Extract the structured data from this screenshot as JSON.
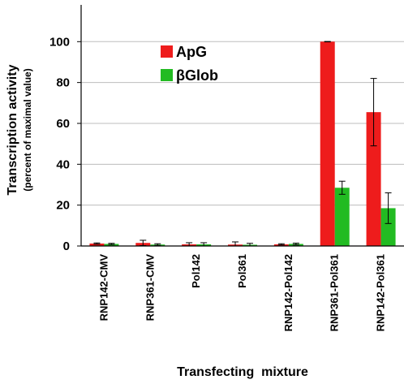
{
  "chart_data": {
    "type": "bar",
    "title": "",
    "ylabel": "Transcription activity",
    "ylabel_sub": "(percent of maximal value)",
    "xlabel": "Transfecting  mixture",
    "ylim": [
      0,
      118
    ],
    "yticks": [
      0,
      20,
      40,
      60,
      80,
      100
    ],
    "grid": true,
    "legend_position": "top-center",
    "categories": [
      "RNP142-CMV",
      "RNP361-CMV",
      "Pol142",
      "Pol361",
      "RNP142-Pol142",
      "RNP361-Pol361",
      "RNP142-Pol361"
    ],
    "series": [
      {
        "name": "ApG",
        "color": "#ee1c1c",
        "values": [
          1.2,
          1.5,
          0.8,
          0.7,
          0.8,
          100,
          65.5
        ],
        "errors": [
          0.3,
          1.3,
          0.8,
          1.3,
          0.3,
          0.1,
          16.5
        ]
      },
      {
        "name": "βGlob",
        "color": "#22bb22",
        "values": [
          1.0,
          0.7,
          0.8,
          0.6,
          1.0,
          28.5,
          18.5
        ],
        "errors": [
          0.3,
          0.4,
          0.8,
          0.7,
          0.4,
          3.2,
          7.5
        ]
      }
    ]
  }
}
